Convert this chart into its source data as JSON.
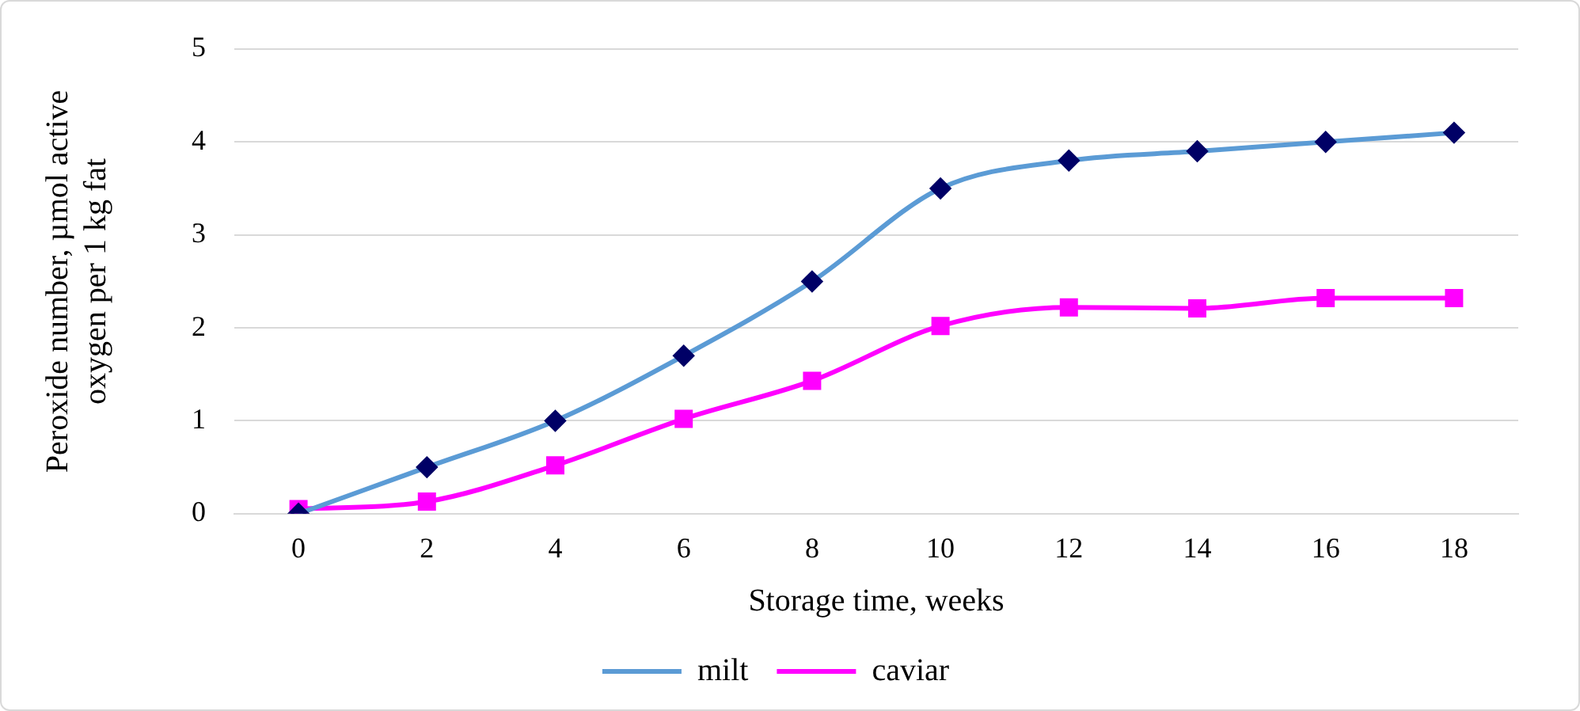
{
  "chart_data": {
    "type": "line",
    "xlabel": "Storage time, weeks",
    "ylabel": [
      "Peroxide number, µmol active",
      "oxygen per 1 kg fat"
    ],
    "categories": [
      "0",
      "2",
      "4",
      "6",
      "8",
      "10",
      "12",
      "14",
      "16",
      "18"
    ],
    "series": [
      {
        "name": "milt",
        "color": "#5b9bd5",
        "colors": [
          "#000066",
          "#000066",
          "#000066",
          "#000066",
          "#000066",
          "#000066",
          "#000066",
          "#000066",
          "#000066",
          "#000066"
        ],
        "marker": "diamond",
        "values": [
          0,
          0.5,
          1,
          1.7,
          2.5,
          3.5,
          3.8,
          3.9,
          4.0,
          4.1
        ]
      },
      {
        "name": "caviar",
        "color": "#ff00ff",
        "marker": "square",
        "values": [
          0.05,
          0.13,
          0.52,
          1.02,
          1.43,
          2.02,
          2.22,
          2.21,
          2.32,
          2.32
        ]
      }
    ],
    "ylim": [
      0,
      5
    ],
    "yticks": [
      0,
      1,
      2,
      3,
      4,
      5
    ],
    "grid": "y",
    "legend": "bottom"
  }
}
